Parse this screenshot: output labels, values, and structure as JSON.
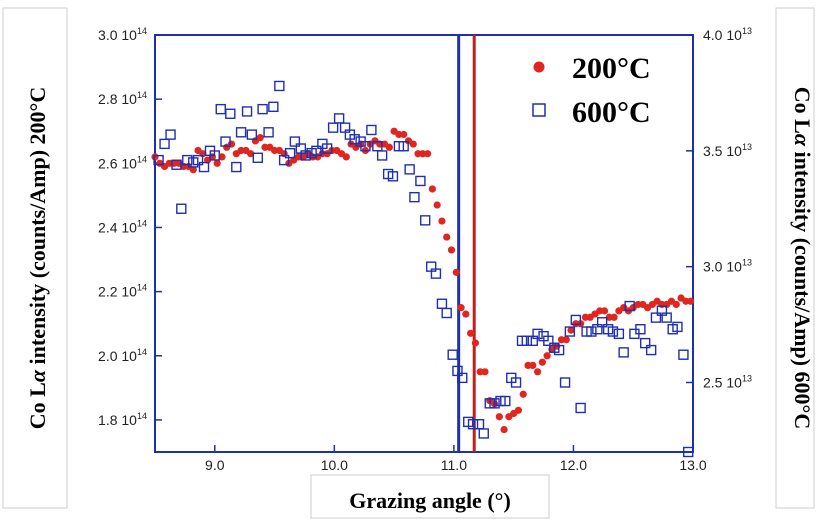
{
  "chart_data": {
    "type": "scatter",
    "xlabel": "Grazing angle (°)",
    "ylabel_left": "Co Lα intensity (counts/Amp) 200°C",
    "ylabel_left_parts": [
      "Co L",
      "α",
      " intensity (counts/Amp) 200°C"
    ],
    "ylabel_right": "Co Lα intensity (counts/Amp) 600°C",
    "ylabel_right_parts": [
      "Co L",
      "α",
      " intensity (counts/Amp) 600°C"
    ],
    "xlim": [
      8.5,
      13.0
    ],
    "ylim_left": [
      170000000000000.0,
      300000000000000.0
    ],
    "ylim_right": [
      22000000000000.0,
      40000000000000.0
    ],
    "x_ticks": [
      {
        "value": 9.0,
        "label": "9.0"
      },
      {
        "value": 10.0,
        "label": "10.0"
      },
      {
        "value": 11.0,
        "label": "11.0"
      },
      {
        "value": 12.0,
        "label": "12.0"
      },
      {
        "value": 13.0,
        "label": "13.0"
      }
    ],
    "y_left_ticks": [
      {
        "value": 180000000000000.0,
        "mant": "1.8 10",
        "exp": "14"
      },
      {
        "value": 200000000000000.0,
        "mant": "2.0 10",
        "exp": "14"
      },
      {
        "value": 220000000000000.0,
        "mant": "2.2 10",
        "exp": "14"
      },
      {
        "value": 240000000000000.0,
        "mant": "2.4 10",
        "exp": "14"
      },
      {
        "value": 260000000000000.0,
        "mant": "2.6 10",
        "exp": "14"
      },
      {
        "value": 280000000000000.0,
        "mant": "2.8 10",
        "exp": "14"
      },
      {
        "value": 300000000000000.0,
        "mant": "3.0 10",
        "exp": "14"
      }
    ],
    "y_right_ticks": [
      {
        "value": 25000000000000.0,
        "mant": "2.5 10",
        "exp": "13"
      },
      {
        "value": 30000000000000.0,
        "mant": "3.0 10",
        "exp": "13"
      },
      {
        "value": 35000000000000.0,
        "mant": "3.5 10",
        "exp": "13"
      },
      {
        "value": 40000000000000.0,
        "mant": "4.0 10",
        "exp": "13"
      }
    ],
    "vlines": [
      {
        "x": 11.04,
        "color": "#1f2fb0"
      },
      {
        "x": 11.17,
        "color": "#c0201c"
      }
    ],
    "legend_position": "top-right",
    "series": [
      {
        "name": "200°C",
        "axis": "left",
        "marker": "filled-circle",
        "color": "#e0261f",
        "x": [
          8.5,
          8.54,
          8.58,
          8.62,
          8.66,
          8.7,
          8.74,
          8.78,
          8.82,
          8.86,
          8.9,
          8.94,
          8.98,
          9.02,
          9.06,
          9.1,
          9.14,
          9.18,
          9.22,
          9.26,
          9.3,
          9.34,
          9.38,
          9.42,
          9.46,
          9.5,
          9.54,
          9.58,
          9.62,
          9.66,
          9.7,
          9.74,
          9.78,
          9.82,
          9.86,
          9.9,
          9.94,
          9.98,
          10.02,
          10.06,
          10.1,
          10.14,
          10.18,
          10.22,
          10.26,
          10.3,
          10.34,
          10.38,
          10.42,
          10.46,
          10.5,
          10.54,
          10.58,
          10.62,
          10.66,
          10.7,
          10.74,
          10.78,
          10.82,
          10.86,
          10.9,
          10.94,
          10.98,
          11.02,
          11.06,
          11.1,
          11.14,
          11.18,
          11.22,
          11.26,
          11.3,
          11.34,
          11.38,
          11.42,
          11.46,
          11.5,
          11.54,
          11.58,
          11.62,
          11.66,
          11.7,
          11.74,
          11.78,
          11.82,
          11.86,
          11.9,
          11.94,
          11.98,
          12.02,
          12.06,
          12.1,
          12.14,
          12.18,
          12.22,
          12.26,
          12.3,
          12.34,
          12.38,
          12.42,
          12.46,
          12.5,
          12.54,
          12.58,
          12.62,
          12.66,
          12.7,
          12.74,
          12.78,
          12.82,
          12.86,
          12.9,
          12.94,
          12.98
        ],
        "y": [
          262000000000000.0,
          260000000000000.0,
          259000000000000.0,
          260000000000000.0,
          260000000000000.0,
          260000000000000.0,
          259000000000000.0,
          259000000000000.0,
          258000000000000.0,
          264000000000000.0,
          263000000000000.0,
          261000000000000.0,
          262000000000000.0,
          260000000000000.0,
          262000000000000.0,
          265000000000000.0,
          266000000000000.0,
          263000000000000.0,
          264000000000000.0,
          264000000000000.0,
          263000000000000.0,
          267000000000000.0,
          268000000000000.0,
          265000000000000.0,
          265000000000000.0,
          264000000000000.0,
          264000000000000.0,
          263000000000000.0,
          260000000000000.0,
          261000000000000.0,
          262000000000000.0,
          262000000000000.0,
          263000000000000.0,
          262000000000000.0,
          262000000000000.0,
          263000000000000.0,
          263000000000000.0,
          264000000000000.0,
          264000000000000.0,
          263000000000000.0,
          262000000000000.0,
          266000000000000.0,
          265000000000000.0,
          266000000000000.0,
          264000000000000.0,
          266000000000000.0,
          267000000000000.0,
          266000000000000.0,
          266000000000000.0,
          265000000000000.0,
          270000000000000.0,
          269000000000000.0,
          269000000000000.0,
          267000000000000.0,
          266000000000000.0,
          263000000000000.0,
          263000000000000.0,
          263000000000000.0,
          252000000000000.0,
          247000000000000.0,
          242000000000000.0,
          237000000000000.0,
          233000000000000.0,
          226000000000000.0,
          215000000000000.0,
          213000000000000.0,
          207000000000000.0,
          204000000000000.0,
          195000000000000.0,
          195000000000000.0,
          186000000000000.0,
          185000000000000.0,
          181000000000000.0,
          177000000000000.0,
          181000000000000.0,
          182000000000000.0,
          183000000000000.0,
          188000000000000.0,
          197000000000000.0,
          197000000000000.0,
          195000000000000.0,
          198000000000000.0,
          200000000000000.0,
          202000000000000.0,
          203000000000000.0,
          205000000000000.0,
          205000000000000.0,
          208000000000000.0,
          210000000000000.0,
          210000000000000.0,
          212000000000000.0,
          212000000000000.0,
          213000000000000.0,
          214000000000000.0,
          214000000000000.0,
          212000000000000.0,
          212000000000000.0,
          214000000000000.0,
          215000000000000.0,
          214000000000000.0,
          215000000000000.0,
          216000000000000.0,
          216000000000000.0,
          215000000000000.0,
          216000000000000.0,
          217000000000000.0,
          216000000000000.0,
          216000000000000.0,
          217000000000000.0,
          216000000000000.0,
          218000000000000.0,
          217000000000000.0,
          217000000000000.0
        ]
      },
      {
        "name": "600°C",
        "axis": "right",
        "marker": "open-square",
        "color": "#1f2fb0",
        "x": [
          8.53,
          8.58,
          8.63,
          8.68,
          8.72,
          8.77,
          8.82,
          8.86,
          8.91,
          8.96,
          9.0,
          9.05,
          9.09,
          9.13,
          9.18,
          9.22,
          9.27,
          9.31,
          9.36,
          9.4,
          9.45,
          9.49,
          9.54,
          9.58,
          9.63,
          9.67,
          9.72,
          9.76,
          9.81,
          9.85,
          9.9,
          9.94,
          9.99,
          10.04,
          10.09,
          10.13,
          10.17,
          10.22,
          10.26,
          10.31,
          10.36,
          10.4,
          10.45,
          10.49,
          10.54,
          10.58,
          10.63,
          10.67,
          10.72,
          10.76,
          10.81,
          10.85,
          10.9,
          10.94,
          10.99,
          11.03,
          11.07,
          11.12,
          11.16,
          11.21,
          11.25,
          11.3,
          11.34,
          11.39,
          11.43,
          11.48,
          11.52,
          11.57,
          11.61,
          11.66,
          11.7,
          11.75,
          11.79,
          11.84,
          11.88,
          11.93,
          11.97,
          12.02,
          12.06,
          12.11,
          12.15,
          12.2,
          12.24,
          12.29,
          12.33,
          12.38,
          12.42,
          12.47,
          12.51,
          12.56,
          12.6,
          12.65,
          12.69,
          12.74,
          12.78,
          12.83,
          12.87,
          12.92,
          12.96
        ],
        "y": [
          34600000000000.0,
          35300000000000.0,
          35700000000000.0,
          34400000000000.0,
          32500000000000.0,
          34600000000000.0,
          34500000000000.0,
          34600000000000.0,
          34300000000000.0,
          35000000000000.0,
          34800000000000.0,
          36800000000000.0,
          35400000000000.0,
          36600000000000.0,
          34300000000000.0,
          35800000000000.0,
          36700000000000.0,
          35700000000000.0,
          34700000000000.0,
          36800000000000.0,
          35800000000000.0,
          36900000000000.0,
          37800000000000.0,
          34600000000000.0,
          34900000000000.0,
          35400000000000.0,
          35100000000000.0,
          34800000000000.0,
          34900000000000.0,
          35000000000000.0,
          35300000000000.0,
          35100000000000.0,
          36000000000000.0,
          36400000000000.0,
          36000000000000.0,
          35700000000000.0,
          35500000000000.0,
          35400000000000.0,
          35200000000000.0,
          35900000000000.0,
          35200000000000.0,
          34800000000000.0,
          34000000000000.0,
          33900000000000.0,
          35200000000000.0,
          35200000000000.0,
          34200000000000.0,
          33000000000000.0,
          33700000000000.0,
          32000000000000.0,
          30000000000000.0,
          29700000000000.0,
          28400000000000.0,
          28000000000000.0,
          26200000000000.0,
          25500000000000.0,
          25200000000000.0,
          23300000000000.0,
          23200000000000.0,
          23200000000000.0,
          22800000000000.0,
          24100000000000.0,
          24100000000000.0,
          24200000000000.0,
          24200000000000.0,
          25200000000000.0,
          25000000000000.0,
          26800000000000.0,
          26800000000000.0,
          26800000000000.0,
          27100000000000.0,
          27000000000000.0,
          26800000000000.0,
          26500000000000.0,
          26400000000000.0,
          25000000000000.0,
          27200000000000.0,
          27700000000000.0,
          23900000000000.0,
          27200000000000.0,
          27200000000000.0,
          27300000000000.0,
          27600000000000.0,
          27300000000000.0,
          27200000000000.0,
          27100000000000.0,
          26300000000000.0,
          28300000000000.0,
          27100000000000.0,
          27300000000000.0,
          26700000000000.0,
          26400000000000.0,
          27800000000000.0,
          28100000000000.0,
          27800000000000.0,
          27300000000000.0,
          27400000000000.0,
          26200000000000.0,
          22000000000000.0
        ]
      }
    ]
  }
}
